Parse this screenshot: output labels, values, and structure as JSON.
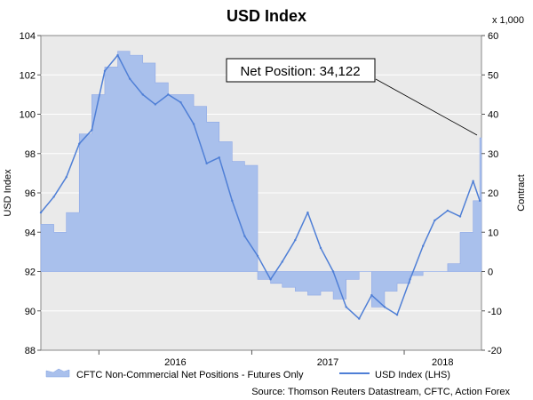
{
  "chart_data": {
    "type": "line",
    "title": "USD Index",
    "ylabel_left": "USD Index",
    "ylabel_right": "Contract",
    "right_scale_note": "x 1,000",
    "ylim_left": [
      88,
      104
    ],
    "ylim_right": [
      -20,
      60
    ],
    "yticks_left": [
      "88",
      "90",
      "92",
      "94",
      "96",
      "98",
      "100",
      "102",
      "104"
    ],
    "yticks_right": [
      "-20",
      "-10",
      "0",
      "10",
      "20",
      "30",
      "40",
      "50",
      "60"
    ],
    "xticks": [
      "2016",
      "2017",
      "2018"
    ],
    "xlim": [
      "2015-08-15",
      "2018-07-05"
    ],
    "grid": true,
    "series": [
      {
        "name": "CFTC Non-Commercial Net Positions - Futures Only",
        "kind": "area",
        "axis": "right",
        "color": "#a9c0ec",
        "x": [
          "2015-08-15",
          "2015-09-15",
          "2015-10-15",
          "2015-11-15",
          "2015-12-15",
          "2016-01-15",
          "2016-02-15",
          "2016-03-15",
          "2016-04-15",
          "2016-05-15",
          "2016-06-15",
          "2016-07-15",
          "2016-08-15",
          "2016-09-15",
          "2016-10-15",
          "2016-11-15",
          "2016-12-15",
          "2017-01-15",
          "2017-02-15",
          "2017-03-15",
          "2017-04-15",
          "2017-05-15",
          "2017-06-15",
          "2017-07-15",
          "2017-08-15",
          "2017-09-15",
          "2017-10-15",
          "2017-11-15",
          "2017-12-15",
          "2018-01-15",
          "2018-02-15",
          "2018-03-15",
          "2018-04-15",
          "2018-05-15",
          "2018-06-15",
          "2018-07-01"
        ],
        "values": [
          12,
          10,
          15,
          35,
          45,
          52,
          56,
          55,
          53,
          48,
          45,
          45,
          42,
          38,
          33,
          28,
          27,
          -2,
          -3,
          -4,
          -5,
          -6,
          -5,
          -7,
          -2,
          0,
          -9,
          -5,
          -3,
          -1,
          0,
          0,
          2,
          10,
          18,
          34
        ]
      },
      {
        "name": "USD Index (LHS)",
        "kind": "line",
        "axis": "left",
        "color": "#4f7fd6",
        "x": [
          "2015-08-15",
          "2015-09-15",
          "2015-10-15",
          "2015-11-15",
          "2015-12-15",
          "2016-01-15",
          "2016-02-15",
          "2016-03-15",
          "2016-04-15",
          "2016-05-15",
          "2016-06-15",
          "2016-07-15",
          "2016-08-15",
          "2016-09-15",
          "2016-10-15",
          "2016-11-15",
          "2016-12-15",
          "2017-01-15",
          "2017-02-15",
          "2017-03-15",
          "2017-04-15",
          "2017-05-15",
          "2017-06-15",
          "2017-07-15",
          "2017-08-15",
          "2017-09-15",
          "2017-10-15",
          "2017-11-15",
          "2017-12-15",
          "2018-01-15",
          "2018-02-15",
          "2018-03-15",
          "2018-04-15",
          "2018-05-15",
          "2018-06-15",
          "2018-07-01"
        ],
        "values": [
          95.0,
          95.8,
          96.8,
          98.5,
          99.2,
          102.2,
          103.0,
          101.8,
          101.0,
          100.5,
          101.0,
          100.6,
          99.5,
          97.5,
          97.8,
          95.6,
          93.8,
          92.8,
          91.6,
          92.5,
          93.6,
          95.0,
          93.2,
          92.0,
          90.2,
          89.6,
          90.8,
          90.2,
          89.8,
          91.6,
          93.3,
          94.6,
          95.1,
          94.8,
          96.6,
          95.6
        ]
      }
    ],
    "annotation": "Net Position: 34,122",
    "legend_position": "bottom",
    "source": "Source: Thomson Reuters Datastream, CFTC, Action Forex"
  }
}
